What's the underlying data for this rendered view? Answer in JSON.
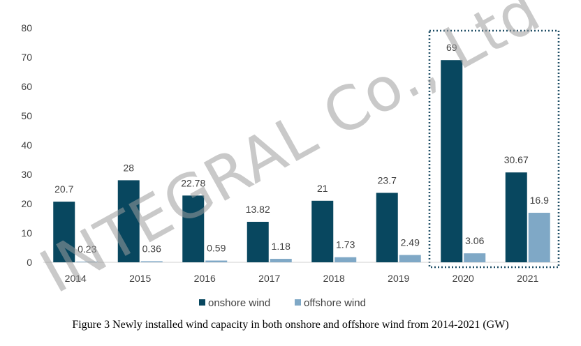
{
  "chart_data": {
    "type": "bar",
    "categories": [
      "2014",
      "2015",
      "2016",
      "2017",
      "2018",
      "2019",
      "2020",
      "2021"
    ],
    "series": [
      {
        "name": "onshore wind",
        "values": [
          20.7,
          28,
          22.78,
          13.82,
          21,
          23.7,
          69,
          30.67
        ],
        "labels": [
          "20.7",
          "28",
          "22.78",
          "13.82",
          "21",
          "23.7",
          "69",
          "30.67"
        ],
        "color": "#08475f"
      },
      {
        "name": "offshore wind",
        "values": [
          0.23,
          0.36,
          0.59,
          1.18,
          1.73,
          2.49,
          3.06,
          16.9
        ],
        "labels": [
          "0.23",
          "0.36",
          "0.59",
          "1.18",
          "1.73",
          "2.49",
          "3.06",
          "16.9"
        ],
        "color": "#7fa8c6"
      }
    ],
    "y_ticks": [
      "0",
      "10",
      "20",
      "30",
      "40",
      "50",
      "60",
      "70",
      "80"
    ],
    "ylim": [
      0,
      80
    ],
    "grid": false,
    "legend_position": "bottom",
    "highlight": {
      "categories": [
        "2020",
        "2021"
      ],
      "style": "dotted-border",
      "color": "#1f4e66"
    }
  },
  "watermark": "INTEGRAL Co., Ltd",
  "caption": "Figure 3 Newly installed wind capacity in both onshore and offshore wind from 2014-2021 (GW)"
}
